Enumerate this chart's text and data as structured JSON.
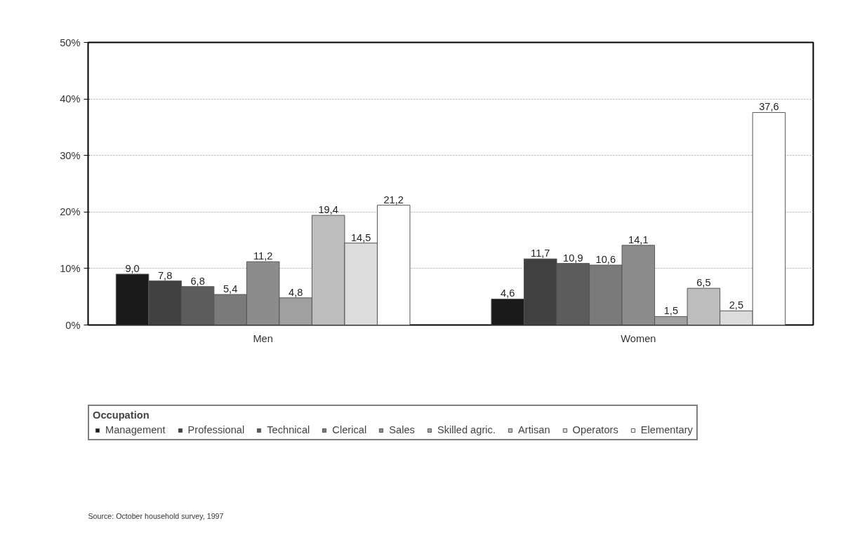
{
  "chart_data": {
    "type": "bar",
    "categories": [
      "Men",
      "Women"
    ],
    "legend_title": "Occupation",
    "legend": "bottom",
    "grid": "y",
    "ylim": [
      0,
      50
    ],
    "yticks": [
      {
        "value": 0,
        "label": "0%"
      },
      {
        "value": 10,
        "label": "10%"
      },
      {
        "value": 20,
        "label": "20%"
      },
      {
        "value": 30,
        "label": "30%"
      },
      {
        "value": 40,
        "label": "40%"
      },
      {
        "value": 50,
        "label": "50%"
      }
    ],
    "series": [
      {
        "name": "Management",
        "color": "#1a1a1a",
        "values": [
          9.0,
          4.6
        ],
        "value_labels": [
          "9,0",
          "4,6"
        ]
      },
      {
        "name": "Professional",
        "color": "#404040",
        "values": [
          7.8,
          11.7
        ],
        "value_labels": [
          "7,8",
          "11,7"
        ]
      },
      {
        "name": "Technical",
        "color": "#5c5c5c",
        "values": [
          6.8,
          10.9
        ],
        "value_labels": [
          "6,8",
          "10,9"
        ]
      },
      {
        "name": "Clerical",
        "color": "#7a7a7a",
        "values": [
          5.4,
          10.6
        ],
        "value_labels": [
          "5,4",
          "10,6"
        ]
      },
      {
        "name": "Sales",
        "color": "#8c8c8c",
        "values": [
          11.2,
          14.1
        ],
        "value_labels": [
          "11,2",
          "14,1"
        ]
      },
      {
        "name": "Skilled agric.",
        "color": "#a0a0a0",
        "values": [
          4.8,
          1.5
        ],
        "value_labels": [
          "4,8",
          "1,5"
        ]
      },
      {
        "name": "Artisan",
        "color": "#bdbdbd",
        "values": [
          19.4,
          6.5
        ],
        "value_labels": [
          "19,4",
          "6,5"
        ]
      },
      {
        "name": "Operators",
        "color": "#dcdcdc",
        "values": [
          14.5,
          2.5
        ],
        "value_labels": [
          "14,5",
          "2,5"
        ]
      },
      {
        "name": "Elementary",
        "color": "#ffffff",
        "values": [
          21.2,
          37.6
        ],
        "value_labels": [
          "21,2",
          "37,6"
        ]
      }
    ],
    "annotations": [
      "Source: October household survey, 1997"
    ]
  }
}
